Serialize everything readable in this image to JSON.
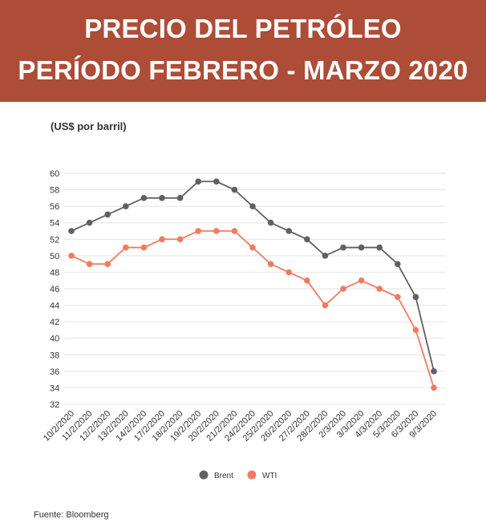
{
  "header": {
    "title_line1": "PRECIO DEL PETRÓLEO",
    "title_line2": "PERÍODO FEBRERO - MARZO 2020",
    "background_color": "#ad4d37"
  },
  "unit_label": "(US$ por barril)",
  "source": "Fuente: Bloomberg",
  "chart_data": {
    "type": "line",
    "title": "PRECIO DEL PETRÓLEO PERÍODO FEBRERO - MARZO 2020",
    "ylabel": "(US$ por barril)",
    "xlabel": "",
    "categories": [
      "10/2/2020",
      "11/2/2020",
      "12/2/2020",
      "13/2/2020",
      "14/2/2020",
      "17/2/2020",
      "18/2/2020",
      "19/2/2020",
      "20/2/2020",
      "21/2/2020",
      "24/2/2020",
      "25/2/2020",
      "26/2/2020",
      "27/2/2020",
      "28/2/2020",
      "2/3/2020",
      "3/3/2020",
      "4/3/2020",
      "5/3/2020",
      "6/3/2020",
      "9/3/2020"
    ],
    "series": [
      {
        "name": "Brent",
        "color": "#616161",
        "values": [
          53,
          54,
          55,
          56,
          57,
          57,
          57,
          59,
          59,
          58,
          56,
          54,
          53,
          52,
          50,
          51,
          51,
          51,
          49,
          45,
          36
        ]
      },
      {
        "name": "WTI",
        "color": "#f07c5f",
        "values": [
          50,
          49,
          49,
          51,
          51,
          52,
          52,
          53,
          53,
          53,
          51,
          49,
          48,
          47,
          44,
          46,
          47,
          46,
          45,
          41,
          34
        ]
      }
    ],
    "ylim": [
      32,
      60
    ],
    "yticks": [
      32,
      34,
      36,
      38,
      40,
      42,
      44,
      46,
      48,
      50,
      52,
      54,
      56,
      58,
      60
    ],
    "grid": true,
    "legend_position": "bottom-center"
  }
}
